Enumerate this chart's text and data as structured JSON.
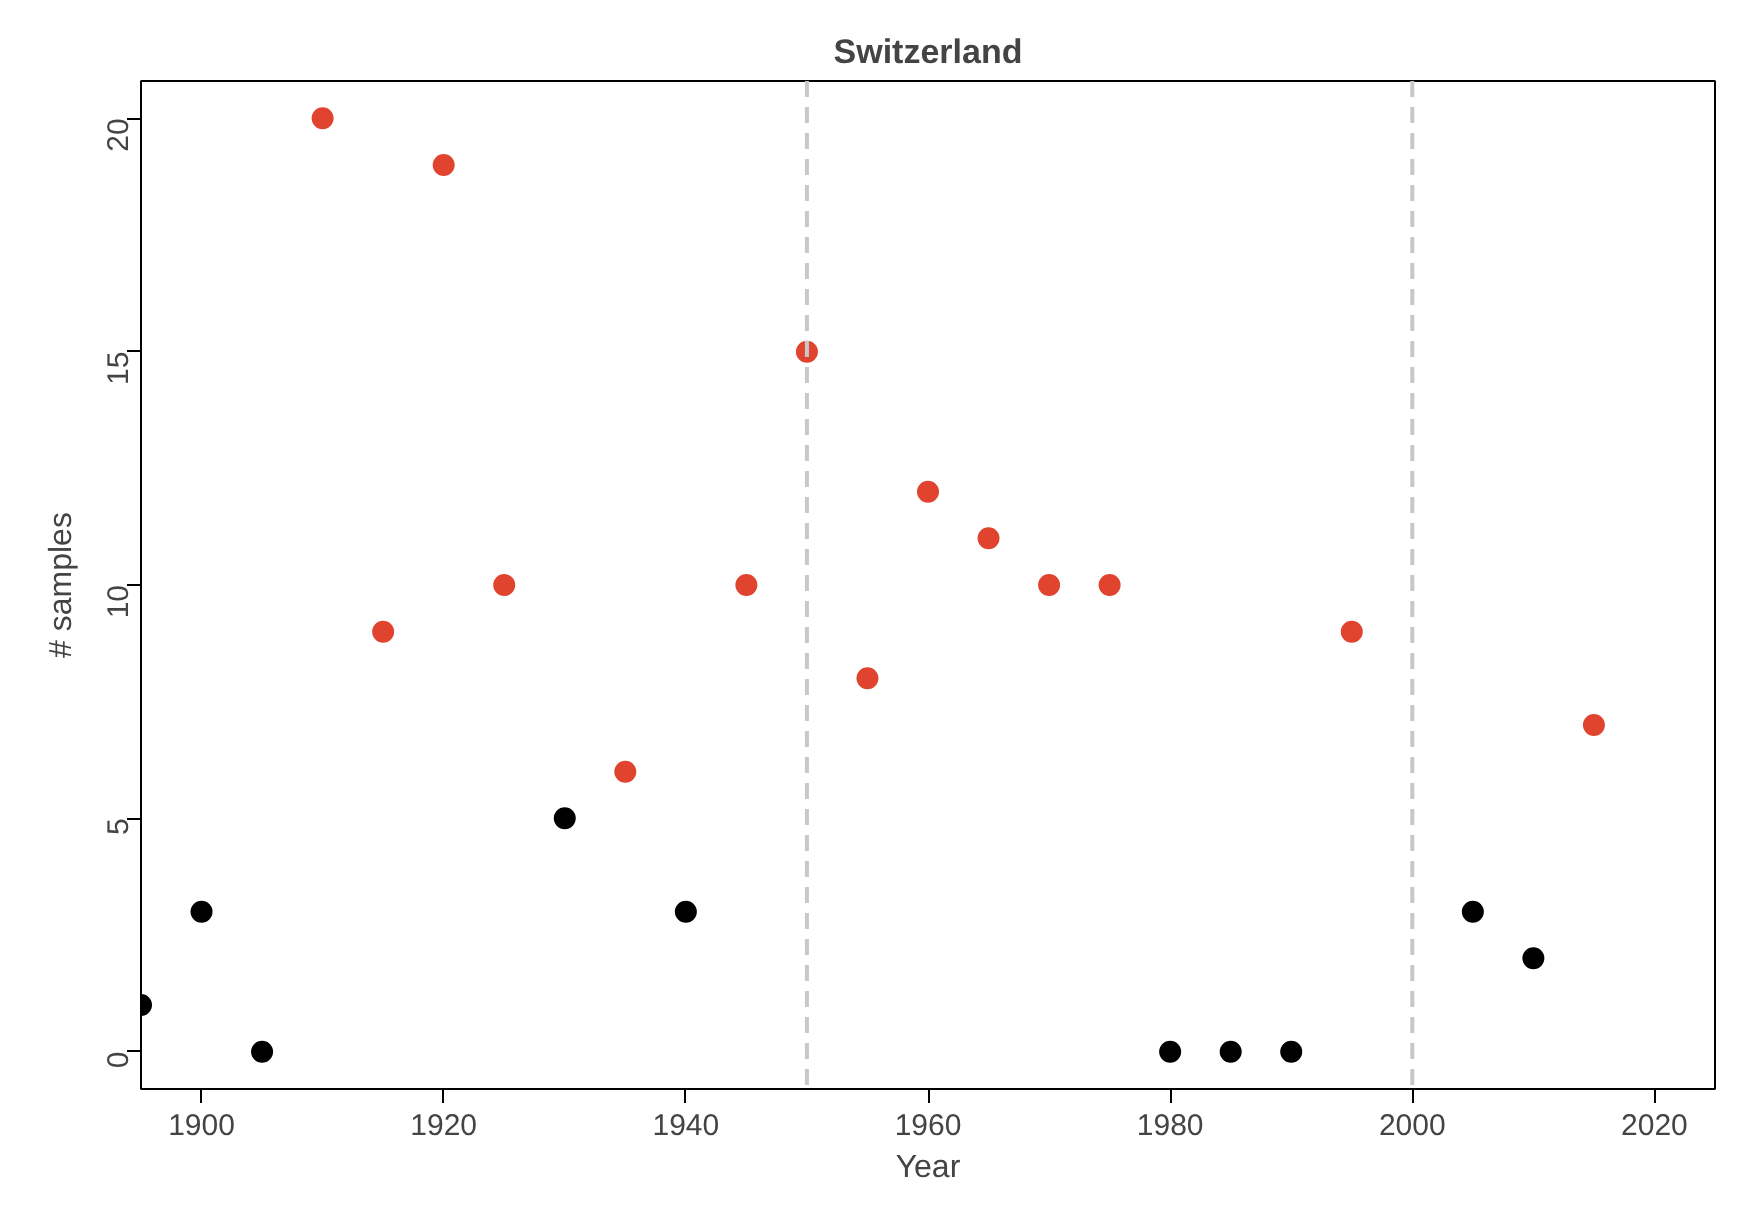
{
  "chart_data": {
    "type": "scatter",
    "title": "Switzerland",
    "xlabel": "Year",
    "ylabel": "# samples",
    "xlim": [
      1895,
      2025
    ],
    "ylim": [
      -0.8,
      20.8
    ],
    "xticks": [
      1900,
      1920,
      1940,
      1960,
      1980,
      2000,
      2020
    ],
    "yticks": [
      0,
      5,
      10,
      15,
      20
    ],
    "grid": false,
    "marker": "circle",
    "series": [
      {
        "color": "#000000",
        "x": [
          1895,
          1900,
          1905,
          1930,
          1940,
          1980,
          1985,
          1990,
          2005,
          2010
        ],
        "values": [
          1,
          3,
          0,
          5,
          3,
          0,
          0,
          0,
          3,
          2
        ]
      },
      {
        "color": "#e0442f",
        "x": [
          1910,
          1915,
          1920,
          1925,
          1935,
          1945,
          1950,
          1955,
          1960,
          1965,
          1970,
          1975,
          1995,
          2015
        ],
        "values": [
          20,
          9,
          19,
          10,
          6,
          10,
          15,
          8,
          12,
          11,
          10,
          10,
          9,
          7
        ]
      }
    ],
    "ref_lines": [
      {
        "axis": "x",
        "value": 1950,
        "color": "#c8c8c8",
        "line_style": "dashed"
      },
      {
        "axis": "x",
        "value": 2000,
        "color": "#c8c8c8",
        "line_style": "dashed"
      }
    ]
  }
}
